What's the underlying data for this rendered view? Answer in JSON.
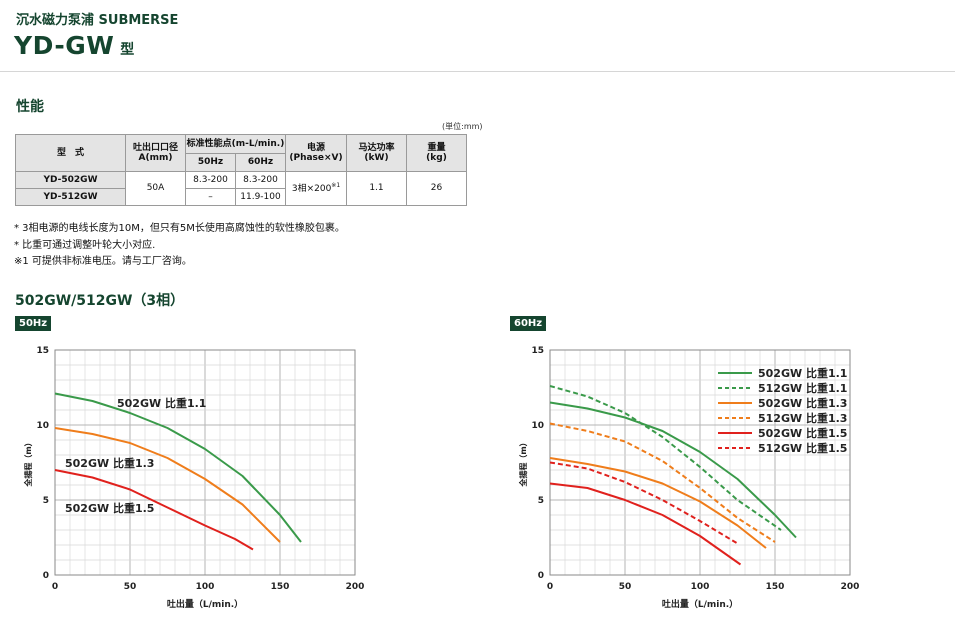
{
  "header": {
    "subtitle": "沉水磁力泵浦 SUBMERSE",
    "model": "YD-GW",
    "model_suffix": "型"
  },
  "performance": {
    "title": "性能",
    "unit_note": "(単位:mm)",
    "headers": {
      "model": "型　式",
      "outlet": "吐出口口径",
      "outlet_sub": "A(mm)",
      "standard": "标准性能点(m-L/min.)",
      "hz50": "50Hz",
      "hz60": "60Hz",
      "power": "电源",
      "power_sub": "(Phase×V)",
      "motor": "马达功率",
      "motor_sub": "(kW)",
      "weight": "重量",
      "weight_sub": "(kg)"
    },
    "rows": [
      {
        "model": "YD-502GW",
        "hz50": "8.3-200",
        "hz60": "8.3-200"
      },
      {
        "model": "YD-512GW",
        "hz50": "–",
        "hz60": "11.9-100"
      }
    ],
    "shared": {
      "outlet": "50A",
      "power": "3相×200",
      "power_mark": "※1",
      "motor": "1.1",
      "weight": "26"
    }
  },
  "notes": [
    "* 3相电源的电线长度为10M，但只有5M长使用高腐蚀性的软性橡胶包裹。",
    "* 比重可通过调整叶轮大小对应.",
    "※1 可提供非标准电压。请与工厂咨询。"
  ],
  "curves_title": "502GW/512GW（3相）",
  "chart_data": [
    {
      "type": "line",
      "tag": "50Hz",
      "xlabel": "吐出量（L/min.）",
      "ylabel": "全揚程（m）",
      "xlim": [
        0,
        200
      ],
      "ylim": [
        0,
        15
      ],
      "xticks": [
        0,
        50,
        100,
        150,
        200
      ],
      "yticks": [
        0,
        5,
        10,
        15
      ],
      "grid": true,
      "series": [
        {
          "name": "502GW 比重1.1",
          "color": "#3a9a4a",
          "dashed": false,
          "x": [
            0,
            25,
            50,
            75,
            100,
            125,
            150,
            164
          ],
          "y": [
            12.1,
            11.6,
            10.8,
            9.8,
            8.4,
            6.6,
            4.0,
            2.2
          ]
        },
        {
          "name": "502GW 比重1.3",
          "color": "#ef7d1b",
          "dashed": false,
          "x": [
            0,
            25,
            50,
            75,
            100,
            125,
            150
          ],
          "y": [
            9.8,
            9.4,
            8.8,
            7.8,
            6.4,
            4.7,
            2.2
          ]
        },
        {
          "name": "502GW 比重1.5",
          "color": "#e0211d",
          "dashed": false,
          "x": [
            0,
            25,
            50,
            75,
            100,
            120,
            132
          ],
          "y": [
            7.0,
            6.5,
            5.7,
            4.5,
            3.3,
            2.4,
            1.7
          ]
        }
      ]
    },
    {
      "type": "line",
      "tag": "60Hz",
      "xlabel": "吐出量（L/min.）",
      "ylabel": "全揚程（m）",
      "xlim": [
        0,
        200
      ],
      "ylim": [
        0,
        15
      ],
      "xticks": [
        0,
        50,
        100,
        150,
        200
      ],
      "yticks": [
        0,
        5,
        10,
        15
      ],
      "grid": true,
      "legend": "top-right",
      "series": [
        {
          "name": "502GW 比重1.1",
          "color": "#3a9a4a",
          "dashed": false,
          "x": [
            0,
            25,
            50,
            75,
            100,
            125,
            150,
            164
          ],
          "y": [
            11.5,
            11.1,
            10.5,
            9.6,
            8.2,
            6.4,
            4.0,
            2.5
          ]
        },
        {
          "name": "512GW 比重1.1",
          "color": "#3a9a4a",
          "dashed": true,
          "x": [
            0,
            25,
            50,
            75,
            100,
            125,
            154
          ],
          "y": [
            12.6,
            11.9,
            10.8,
            9.2,
            7.2,
            5.0,
            3.0
          ]
        },
        {
          "name": "502GW 比重1.3",
          "color": "#ef7d1b",
          "dashed": false,
          "x": [
            0,
            25,
            50,
            75,
            100,
            125,
            144
          ],
          "y": [
            7.8,
            7.4,
            6.9,
            6.1,
            4.9,
            3.3,
            1.8
          ]
        },
        {
          "name": "512GW 比重1.3",
          "color": "#ef7d1b",
          "dashed": true,
          "x": [
            0,
            25,
            50,
            75,
            100,
            125,
            150
          ],
          "y": [
            10.1,
            9.6,
            8.9,
            7.6,
            5.8,
            3.8,
            2.2
          ]
        },
        {
          "name": "502GW 比重1.5",
          "color": "#e0211d",
          "dashed": false,
          "x": [
            0,
            25,
            50,
            75,
            100,
            127
          ],
          "y": [
            6.1,
            5.8,
            5.0,
            4.0,
            2.6,
            0.7
          ]
        },
        {
          "name": "512GW 比重1.5",
          "color": "#e0211d",
          "dashed": true,
          "x": [
            0,
            25,
            50,
            75,
            100,
            125
          ],
          "y": [
            7.5,
            7.1,
            6.2,
            5.0,
            3.6,
            2.1
          ]
        }
      ]
    }
  ]
}
